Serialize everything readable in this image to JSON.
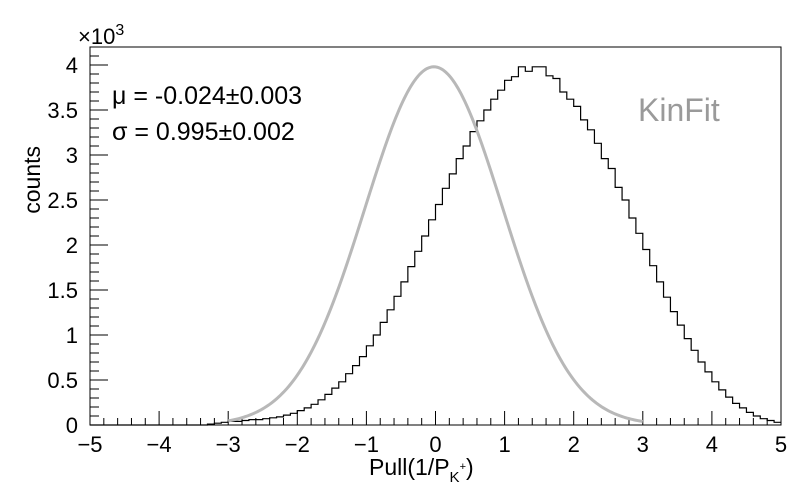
{
  "chart_data": {
    "type": "histogram",
    "xlabel": "Pull(1/P",
    "xlabel_subscript": "K",
    "xlabel_superscript": "+",
    "xlabel_close": ")",
    "ylabel": "counts",
    "y_multiplier": "×10",
    "y_multiplier_exponent": "3",
    "xlim": [
      -5,
      5
    ],
    "ylim": [
      0,
      4.2
    ],
    "y_unit_scale": 1000,
    "x_ticks": [
      "−5",
      "−4",
      "−3",
      "−2",
      "−1",
      "0",
      "1",
      "2",
      "3",
      "4",
      "5"
    ],
    "y_ticks": [
      "0",
      "0.5",
      "1",
      "1.5",
      "2",
      "2.5",
      "3",
      "3.5",
      "4"
    ],
    "histogram": {
      "bin_edges": [
        -5,
        5
      ],
      "n_bins": 100,
      "values": [
        0,
        0,
        0,
        0,
        0,
        0,
        0,
        0,
        0,
        0,
        0,
        0,
        0,
        0,
        0,
        0,
        0,
        10,
        20,
        30,
        40,
        40,
        50,
        60,
        60,
        70,
        80,
        90,
        110,
        130,
        160,
        190,
        230,
        280,
        340,
        410,
        480,
        570,
        660,
        760,
        880,
        1000,
        1140,
        1280,
        1430,
        1590,
        1760,
        1930,
        2100,
        2280,
        2450,
        2630,
        2790,
        2960,
        3100,
        3260,
        3380,
        3500,
        3620,
        3720,
        3830,
        3870,
        3980,
        3930,
        3980,
        3980,
        3880,
        3850,
        3700,
        3620,
        3540,
        3390,
        3280,
        3130,
        2960,
        2850,
        2640,
        2500,
        2300,
        2130,
        1950,
        1770,
        1590,
        1420,
        1260,
        1110,
        960,
        830,
        700,
        590,
        480,
        390,
        310,
        240,
        190,
        140,
        100,
        70,
        50,
        30
      ]
    },
    "fit": {
      "type": "gaussian",
      "color": "#b8b8b8",
      "amplitude": 3980,
      "mean": -0.024,
      "sigma": 0.995
    },
    "annotations": {
      "mu_label": "μ = -0.024±0.003",
      "sigma_label": "σ = 0.995±0.002",
      "tag": "KinFit",
      "tag_color": "#9a9a9a"
    }
  }
}
